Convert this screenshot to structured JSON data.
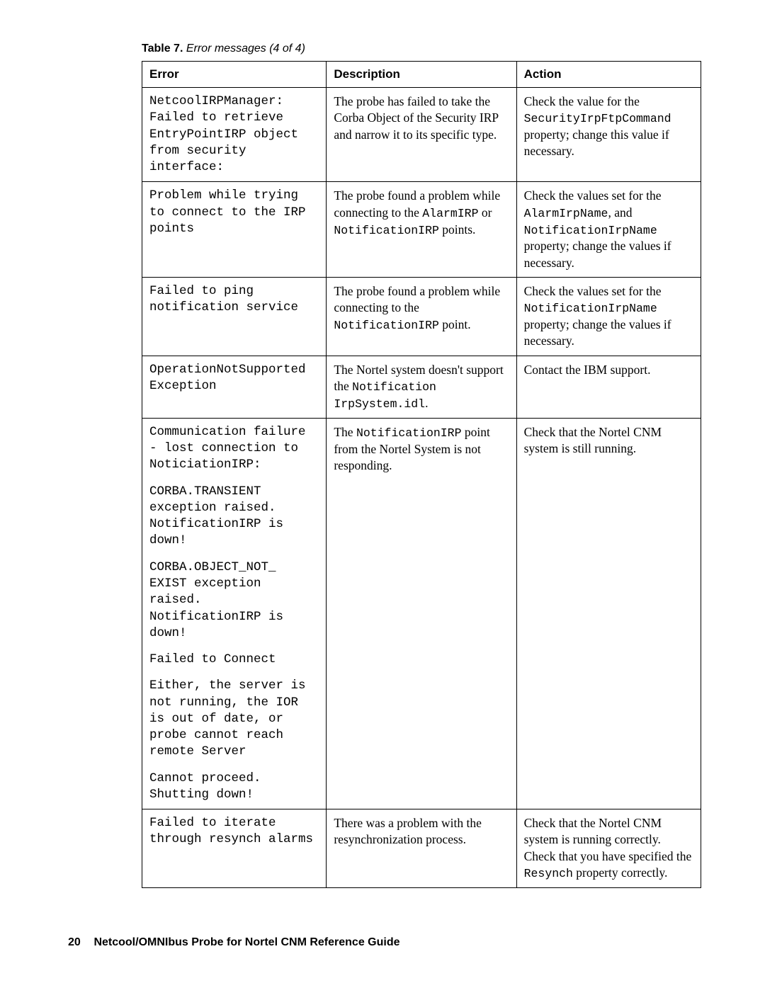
{
  "caption": {
    "label": "Table 7.",
    "title": " Error messages (4 of 4)"
  },
  "headers": {
    "c1": "Error",
    "c2": "Description",
    "c3": "Action"
  },
  "rows": {
    "r1": {
      "err": "NetcoolIRPManager: Failed to retrieve EntryPointIRP object from security interface:",
      "desc": "The probe has failed to take the Corba Object of the Security IRP and narrow it to its specific type.",
      "act_pre": "Check the value for the ",
      "act_code": "SecurityIrpFtpCommand",
      "act_post": " property; change this value if necessary."
    },
    "r2": {
      "err": "Problem while trying to connect to the IRP points",
      "desc_pre": "The probe found a problem while connecting to the ",
      "desc_code1": "AlarmIRP",
      "desc_mid": " or ",
      "desc_code2": "NotificationIRP",
      "desc_post": " points.",
      "act_pre": "Check the values set for the ",
      "act_code1": "AlarmIrpName",
      "act_mid": ", and ",
      "act_code2": "NotificationIrpName",
      "act_post": " property; change the values if necessary."
    },
    "r3": {
      "err": "Failed to ping notification service",
      "desc_pre": "The probe found a problem while connecting to the ",
      "desc_code": "NotificationIRP",
      "desc_post": " point.",
      "act_pre": "Check the values set for the ",
      "act_code": "NotificationIrpName",
      "act_post": " property; change the values if necessary."
    },
    "r4": {
      "err": "OperationNotSupported Exception",
      "desc_pre": "The Nortel system doesn't support the ",
      "desc_code": "Notification IrpSystem.idl",
      "desc_post": ".",
      "act": "Contact the IBM support."
    },
    "r5": {
      "err_p1": "Communication failure - lost connection to NoticiationIRP:",
      "err_p2": "CORBA.TRANSIENT exception raised. NotificationIRP is down!",
      "err_p3": "CORBA.OBJECT_NOT_ EXIST exception raised. NotificationIRP is down!",
      "err_p4": "Failed to Connect",
      "err_p5": "Either, the server is not running, the IOR is out of date, or probe cannot reach remote Server",
      "err_p6": "Cannot proceed. Shutting down!",
      "desc_pre": "The ",
      "desc_code": "NotificationIRP",
      "desc_post": " point from the Nortel System is not responding.",
      "act": "Check that the Nortel CNM system is still running."
    },
    "r6": {
      "err": "Failed to iterate through resynch alarms",
      "desc": "There was a problem with the resynchronization process.",
      "act_pre": "Check that the Nortel CNM system is running correctly. Check that you have specified the ",
      "act_code": "Resynch",
      "act_post": " property correctly."
    }
  },
  "footer": {
    "page": "20",
    "title": "Netcool/OMNIbus Probe for Nortel CNM  Reference Guide"
  }
}
